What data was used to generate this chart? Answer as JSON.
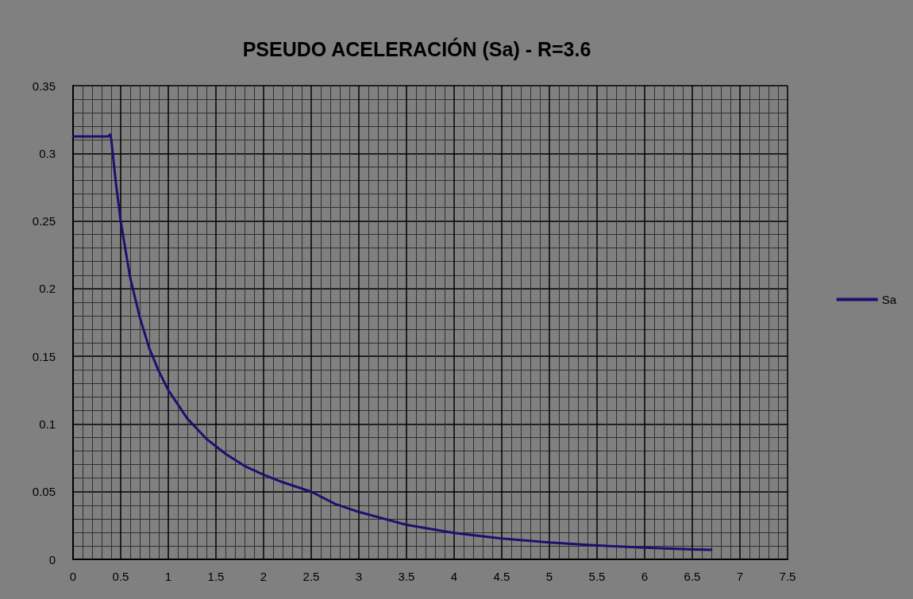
{
  "chart_data": {
    "type": "line",
    "title": "PSEUDO ACELERACIÓN (Sa) - R=3.6",
    "x": [
      0,
      0.1,
      0.2,
      0.3,
      0.37,
      0.39,
      0.4,
      0.45,
      0.5,
      0.6,
      0.7,
      0.8,
      0.9,
      1,
      1.2,
      1.4,
      1.6,
      1.8,
      2,
      2.2,
      2.5,
      2.75,
      3,
      3.5,
      4,
      4.5,
      5,
      5.5,
      6,
      6.5,
      6.7
    ],
    "series": [
      {
        "name": "Sa",
        "color": "#1f0f6e",
        "values": [
          0.3125,
          0.3125,
          0.3125,
          0.3125,
          0.3125,
          0.314,
          0.311,
          0.278,
          0.25,
          0.208,
          0.179,
          0.156,
          0.139,
          0.125,
          0.104,
          0.089,
          0.078,
          0.069,
          0.0625,
          0.057,
          0.05,
          0.041,
          0.035,
          0.0255,
          0.0195,
          0.0154,
          0.0125,
          0.0103,
          0.0087,
          0.0074,
          0.007
        ]
      }
    ],
    "xlim": [
      0,
      7.5
    ],
    "xticks": [
      0,
      0.5,
      1,
      1.5,
      2,
      2.5,
      3,
      3.5,
      4,
      4.5,
      5,
      5.5,
      6,
      6.5,
      7,
      7.5
    ],
    "ylim": [
      0,
      0.35
    ],
    "yticks": [
      0,
      0.05,
      0.1,
      0.15,
      0.2,
      0.25,
      0.3,
      0.35
    ],
    "grid": true,
    "legend": "right",
    "marker": "none",
    "line_style": "solid"
  }
}
